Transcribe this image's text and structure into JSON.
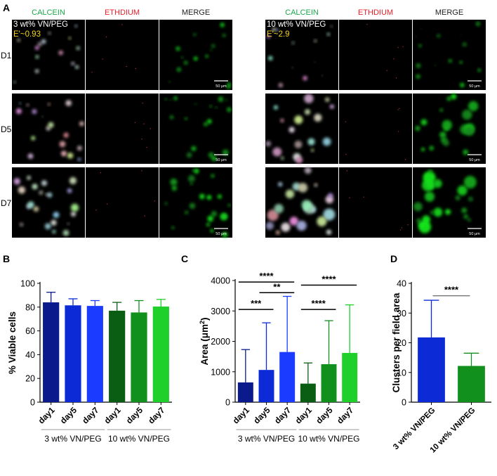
{
  "panel_letters": {
    "a": "A",
    "b": "B",
    "c": "C",
    "d": "D"
  },
  "micrographs": {
    "channels": [
      "CALCEIN",
      "ETHDIUM",
      "MERGE"
    ],
    "channel_colors": [
      "#1aa84a",
      "#e8202a",
      "#222222"
    ],
    "days": [
      "D1",
      "D5",
      "D7"
    ],
    "groups": [
      {
        "label": "3 wt% VN/PEG",
        "modulus": "E'~0.93"
      },
      {
        "label": "10 wt% VN/PEG",
        "modulus": "E'~2.9"
      }
    ],
    "scale_bar": "50 μm",
    "modulus_color": "#f2d321"
  },
  "chart_data": [
    {
      "type": "bar",
      "panel": "B",
      "ylabel": "% Viable cells",
      "ylim": [
        0,
        100
      ],
      "yticks": [
        0,
        20,
        40,
        60,
        80,
        100
      ],
      "categories": [
        "day1",
        "day5",
        "day7",
        "day1",
        "day5",
        "day7"
      ],
      "values": [
        84,
        81.5,
        81,
        77,
        75.5,
        80.5
      ],
      "error": [
        8.5,
        5.5,
        4.5,
        7,
        10,
        6
      ],
      "colors": [
        "#0a1a8c",
        "#0c2bd6",
        "#1b3cff",
        "#0a5e14",
        "#12901e",
        "#1fcf2a"
      ],
      "groups": [
        {
          "label": "3 wt% VN/PEG",
          "span": [
            0,
            2
          ]
        },
        {
          "label": "10 wt% VN/PEG",
          "span": [
            3,
            5
          ]
        }
      ]
    },
    {
      "type": "bar",
      "panel": "C",
      "ylabel": "Area (μm²)",
      "ylabel_main": "Area (μm",
      "ylabel_sup": "2",
      "ylabel_end": ")",
      "ylim": [
        0,
        4000
      ],
      "yticks": [
        0,
        1000,
        2000,
        3000,
        4000
      ],
      "categories": [
        "day1",
        "day5",
        "day7",
        "day1",
        "day5",
        "day7"
      ],
      "values": [
        650,
        1060,
        1650,
        610,
        1250,
        1620
      ],
      "error": [
        1080,
        1550,
        1830,
        680,
        1430,
        1580
      ],
      "colors": [
        "#0a1a8c",
        "#0c2bd6",
        "#1b3cff",
        "#0a5e14",
        "#12901e",
        "#1fcf2a"
      ],
      "groups": [
        {
          "label": "3 wt% VN/PEG",
          "span": [
            0,
            2
          ]
        },
        {
          "label": "10 wt% VN/PEG",
          "span": [
            3,
            5
          ]
        }
      ],
      "significance": [
        {
          "from": 0,
          "to": 1,
          "label": "***",
          "y": 3050
        },
        {
          "from": 1,
          "to": 2,
          "label": "**",
          "y": 3600
        },
        {
          "from": 0,
          "to": 2,
          "label": "****",
          "y": 3950
        },
        {
          "from": 3,
          "to": 4,
          "label": "****",
          "y": 3050
        },
        {
          "from": 3,
          "to": 5,
          "label": "****",
          "y": 3850
        }
      ]
    },
    {
      "type": "bar",
      "panel": "D",
      "ylabel": "Clusters per field area",
      "ylim": [
        0,
        40
      ],
      "yticks": [
        0,
        10,
        20,
        30,
        40
      ],
      "categories": [
        "3 wt% VN/PEG",
        "10 wt% VN/PEG"
      ],
      "values": [
        21.8,
        12.2
      ],
      "error": [
        12.5,
        4.3
      ],
      "colors": [
        "#0c2bd6",
        "#12901e"
      ],
      "significance": [
        {
          "from": 0,
          "to": 1,
          "label": "****",
          "y": 35.8
        }
      ]
    }
  ]
}
